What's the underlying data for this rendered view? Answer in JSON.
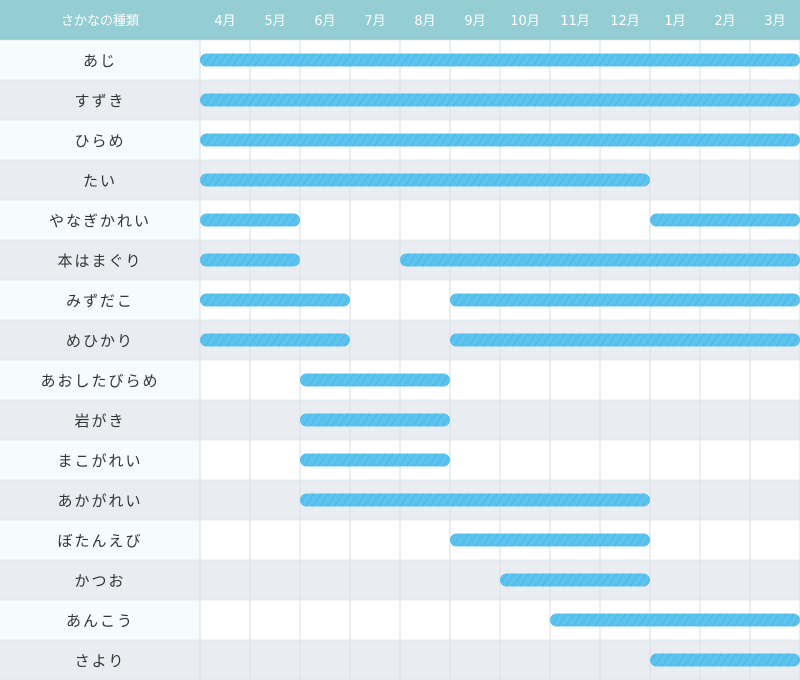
{
  "chart_data": {
    "type": "bar",
    "subtype": "gantt",
    "header_label": "さかなの種類",
    "months": [
      "4月",
      "5月",
      "6月",
      "7月",
      "8月",
      "9月",
      "10月",
      "11月",
      "12月",
      "1月",
      "2月",
      "3月"
    ],
    "fish": [
      {
        "name": "あじ",
        "periods": [
          [
            "4月",
            "3月"
          ]
        ]
      },
      {
        "name": "すずき",
        "periods": [
          [
            "4月",
            "3月"
          ]
        ]
      },
      {
        "name": "ひらめ",
        "periods": [
          [
            "4月",
            "3月"
          ]
        ]
      },
      {
        "name": "たい",
        "periods": [
          [
            "4月",
            "12月"
          ]
        ]
      },
      {
        "name": "やなぎかれい",
        "periods": [
          [
            "4月",
            "5月"
          ],
          [
            "1月",
            "3月"
          ]
        ]
      },
      {
        "name": "本はまぐり",
        "periods": [
          [
            "4月",
            "5月"
          ],
          [
            "8月",
            "3月"
          ]
        ]
      },
      {
        "name": "みずだこ",
        "periods": [
          [
            "4月",
            "6月"
          ],
          [
            "9月",
            "3月"
          ]
        ]
      },
      {
        "name": "めひかり",
        "periods": [
          [
            "4月",
            "6月"
          ],
          [
            "9月",
            "3月"
          ]
        ]
      },
      {
        "name": "あおしたびらめ",
        "periods": [
          [
            "6月",
            "8月"
          ]
        ]
      },
      {
        "name": "岩がき",
        "periods": [
          [
            "6月",
            "8月"
          ]
        ]
      },
      {
        "name": "まこがれい",
        "periods": [
          [
            "6月",
            "8月"
          ]
        ]
      },
      {
        "name": "あかがれい",
        "periods": [
          [
            "6月",
            "12月"
          ]
        ]
      },
      {
        "name": "ぼたんえび",
        "periods": [
          [
            "9月",
            "12月"
          ]
        ]
      },
      {
        "name": "かつお",
        "periods": [
          [
            "10月",
            "12月"
          ]
        ]
      },
      {
        "name": "あんこう",
        "periods": [
          [
            "11月",
            "3月"
          ]
        ]
      },
      {
        "name": "さより",
        "periods": [
          [
            "1月",
            "3月"
          ]
        ]
      }
    ]
  },
  "colors": {
    "header_bg": "#94cdd3",
    "header_text": "#ffffff",
    "label_bg_odd": "#f6fbfd",
    "label_bg_even": "#e9edf1",
    "row_bg_odd": "#ffffff",
    "row_bg_even": "#e9edf1",
    "grid": "#d8dee4",
    "bar": "#5cc3ee",
    "bar_stripe": "#48b0e2",
    "fish_text": "#333333"
  }
}
